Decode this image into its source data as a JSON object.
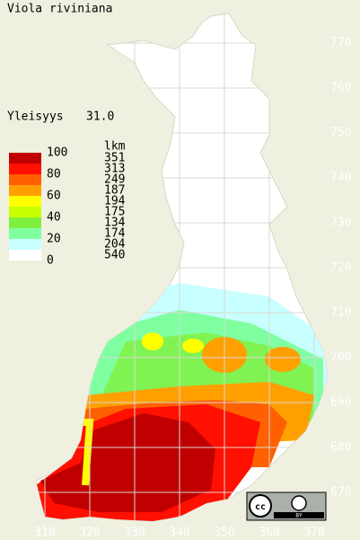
{
  "title": "Viola riviniana",
  "frequency": {
    "label": "Yleisyys",
    "value": "31.0"
  },
  "legend": {
    "classes": [
      100,
      80,
      60,
      40,
      20,
      0
    ],
    "colors": [
      "#c00000",
      "#ff1000",
      "#ff6000",
      "#ffa000",
      "#ffff00",
      "#c8ff00",
      "#80f040",
      "#80ffa0",
      "#c8ffff",
      "#ffffff"
    ],
    "count_header": "lkm",
    "counts": [
      351,
      313,
      249,
      187,
      194,
      175,
      134,
      174,
      204,
      540
    ]
  },
  "axes": {
    "x_ticks": [
      310,
      320,
      330,
      340,
      350,
      360,
      370
    ],
    "y_ticks": [
      770,
      760,
      750,
      740,
      730,
      720,
      710,
      700,
      690,
      680,
      670
    ]
  },
  "license": {
    "badge": "cc",
    "by": "BY"
  }
}
